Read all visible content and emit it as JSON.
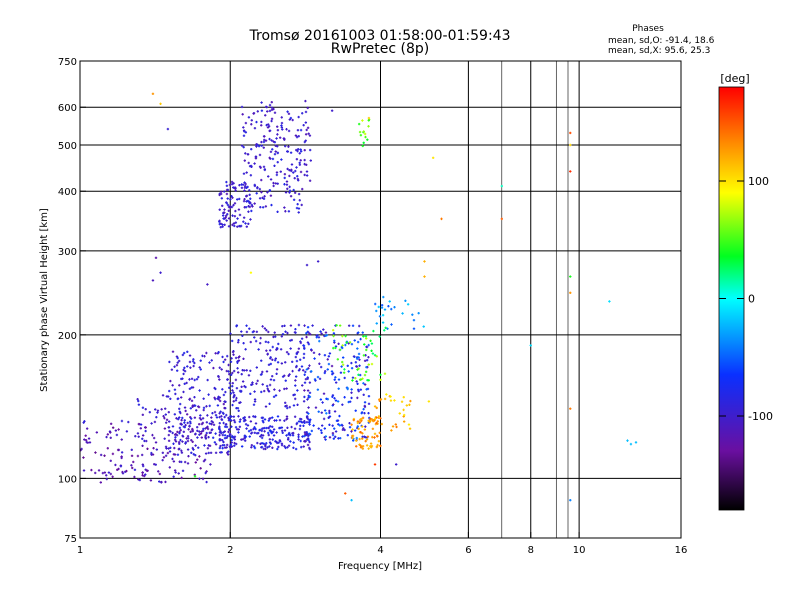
{
  "chart_data": {
    "type": "scatter",
    "title": "Tromsø 20161003 01:58:00-01:59:43",
    "subtitle": "RwPretec (8p)",
    "info": {
      "heading": "Phases",
      "line1": "mean, sd,O: -91.4, 18.6",
      "line2": "mean, sd,X:  95.6, 25.3"
    },
    "xlabel": "Frequency [MHz]",
    "ylabel": "Stationary phase Virtual Height [km]",
    "x_scale": "log",
    "y_scale": "log",
    "xlim": [
      1,
      16
    ],
    "ylim": [
      75,
      750
    ],
    "x_ticks": [
      {
        "value": 1,
        "label": "1"
      },
      {
        "value": 2,
        "label": "2"
      },
      {
        "value": 4,
        "label": "4"
      },
      {
        "value": 6,
        "label": "6"
      },
      {
        "value": 8,
        "label": "8"
      },
      {
        "value": 10,
        "label": "10"
      },
      {
        "value": 16,
        "label": "16"
      }
    ],
    "y_ticks": [
      {
        "value": 75,
        "label": "75"
      },
      {
        "value": 100,
        "label": "100"
      },
      {
        "value": 200,
        "label": "200"
      },
      {
        "value": 300,
        "label": "300"
      },
      {
        "value": 400,
        "label": "400"
      },
      {
        "value": 500,
        "label": "500"
      },
      {
        "value": 600,
        "label": "600"
      },
      {
        "value": 750,
        "label": "750"
      }
    ],
    "x_gridlines": [
      2,
      4,
      6,
      8,
      10
    ],
    "x_minor_gridlines": [
      7,
      9,
      9.5
    ],
    "y_gridlines": [
      100,
      200,
      300,
      400,
      500,
      600
    ],
    "grid": true,
    "colorbar": {
      "title": "[deg]",
      "range": [
        -180,
        180
      ],
      "ticks": [
        {
          "value": 100,
          "label": "100"
        },
        {
          "value": 0,
          "label": "0"
        },
        {
          "value": -100,
          "label": "-100"
        }
      ]
    },
    "clusters": [
      {
        "f": [
          1.0,
          1.85
        ],
        "h": [
          98,
          132
        ],
        "phase": [
          -135,
          -90
        ],
        "n": 180
      },
      {
        "f": [
          1.3,
          2.0
        ],
        "h": [
          112,
          150
        ],
        "phase": [
          -120,
          -80
        ],
        "n": 110
      },
      {
        "f": [
          1.5,
          2.1
        ],
        "h": [
          118,
          185
        ],
        "phase": [
          -115,
          -80
        ],
        "n": 200
      },
      {
        "f": [
          1.9,
          2.9
        ],
        "h": [
          115,
          135
        ],
        "phase": [
          -110,
          -70
        ],
        "n": 240
      },
      {
        "f": [
          2.0,
          2.9
        ],
        "h": [
          140,
          210
        ],
        "phase": [
          -110,
          -80
        ],
        "n": 180
      },
      {
        "f": [
          2.8,
          3.8
        ],
        "h": [
          120,
          210
        ],
        "phase": [
          -120,
          -40
        ],
        "n": 240
      },
      {
        "f": [
          3.2,
          4.1
        ],
        "h": [
          160,
          210
        ],
        "phase": [
          20,
          80
        ],
        "n": 50
      },
      {
        "f": [
          3.5,
          4.0
        ],
        "h": [
          115,
          135
        ],
        "phase": [
          110,
          150
        ],
        "n": 70
      },
      {
        "f": [
          3.9,
          4.6
        ],
        "h": [
          125,
          150
        ],
        "phase": [
          95,
          140
        ],
        "n": 30
      },
      {
        "f": [
          3.9,
          4.9
        ],
        "h": [
          205,
          240
        ],
        "phase": [
          -60,
          -10
        ],
        "n": 25
      },
      {
        "f": [
          1.9,
          2.2
        ],
        "h": [
          335,
          420
        ],
        "phase": [
          -115,
          -85
        ],
        "n": 100
      },
      {
        "f": [
          2.1,
          2.9
        ],
        "h": [
          360,
          620
        ],
        "phase": [
          -115,
          -80
        ],
        "n": 240
      },
      {
        "f": [
          3.6,
          3.8
        ],
        "h": [
          495,
          570
        ],
        "phase": [
          30,
          110
        ],
        "n": 15
      }
    ],
    "points": [
      {
        "f": 1.4,
        "h": 640,
        "phase": 130
      },
      {
        "f": 1.45,
        "h": 610,
        "phase": 110
      },
      {
        "f": 1.5,
        "h": 540,
        "phase": -95
      },
      {
        "f": 1.42,
        "h": 290,
        "phase": -120
      },
      {
        "f": 1.45,
        "h": 270,
        "phase": -100
      },
      {
        "f": 1.4,
        "h": 260,
        "phase": -110
      },
      {
        "f": 1.8,
        "h": 255,
        "phase": -105
      },
      {
        "f": 2.2,
        "h": 270,
        "phase": 90
      },
      {
        "f": 3.0,
        "h": 285,
        "phase": -100
      },
      {
        "f": 2.85,
        "h": 280,
        "phase": -100
      },
      {
        "f": 3.2,
        "h": 590,
        "phase": -100
      },
      {
        "f": 3.4,
        "h": 93,
        "phase": 150
      },
      {
        "f": 3.5,
        "h": 90,
        "phase": -20
      },
      {
        "f": 3.9,
        "h": 107,
        "phase": 160
      },
      {
        "f": 4.3,
        "h": 107,
        "phase": -100
      },
      {
        "f": 4.9,
        "h": 265,
        "phase": 120
      },
      {
        "f": 4.9,
        "h": 285,
        "phase": 120
      },
      {
        "f": 5.1,
        "h": 470,
        "phase": 100
      },
      {
        "f": 5.3,
        "h": 350,
        "phase": 140
      },
      {
        "f": 5.0,
        "h": 145,
        "phase": 100
      },
      {
        "f": 7.0,
        "h": 410,
        "phase": 10
      },
      {
        "f": 7.0,
        "h": 350,
        "phase": 150
      },
      {
        "f": 8.0,
        "h": 190,
        "phase": -10
      },
      {
        "f": 9.6,
        "h": 530,
        "phase": 155
      },
      {
        "f": 9.6,
        "h": 500,
        "phase": 105
      },
      {
        "f": 9.6,
        "h": 440,
        "phase": 165
      },
      {
        "f": 9.6,
        "h": 265,
        "phase": 40
      },
      {
        "f": 9.6,
        "h": 245,
        "phase": 130
      },
      {
        "f": 9.6,
        "h": 140,
        "phase": 140
      },
      {
        "f": 9.6,
        "h": 90,
        "phase": -40
      },
      {
        "f": 11.5,
        "h": 235,
        "phase": -10
      },
      {
        "f": 12.5,
        "h": 120,
        "phase": -20
      },
      {
        "f": 12.7,
        "h": 118,
        "phase": -20
      },
      {
        "f": 13.0,
        "h": 119,
        "phase": -20
      },
      {
        "f": 1.7,
        "h": 101,
        "phase": 40
      }
    ]
  }
}
